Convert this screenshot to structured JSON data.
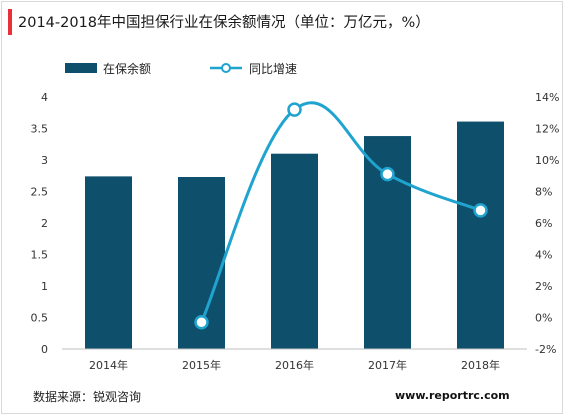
{
  "title": "2014-2018年中国担保行业在保余额情况（单位：万亿元，%）",
  "source": "数据来源：锐观咨询",
  "website": "www.reportrc.com",
  "colors": {
    "bar": "#0e4f6b",
    "line": "#1fa3cf",
    "accent": "#e8313b"
  },
  "chart_data": {
    "type": "bar",
    "categories": [
      "2014年",
      "2015年",
      "2016年",
      "2017年",
      "2018年"
    ],
    "series": [
      {
        "name": "在保余额",
        "type": "bar",
        "axis": "left",
        "values": [
          2.74,
          2.73,
          3.1,
          3.38,
          3.61
        ]
      },
      {
        "name": "同比增速",
        "type": "line",
        "axis": "right",
        "unit": "%",
        "values": [
          null,
          -0.3,
          13.2,
          9.1,
          6.8
        ]
      }
    ],
    "ylim_left": [
      0,
      4
    ],
    "yticks_left": [
      "0",
      "0.5",
      "1",
      "1.5",
      "2",
      "2.5",
      "3",
      "3.5",
      "4"
    ],
    "ylim_right": [
      -2,
      14
    ],
    "yticks_right": [
      "-2%",
      "0%",
      "2%",
      "4%",
      "6%",
      "8%",
      "10%",
      "12%",
      "14%"
    ],
    "grid": false,
    "legend_position": "top-left"
  }
}
